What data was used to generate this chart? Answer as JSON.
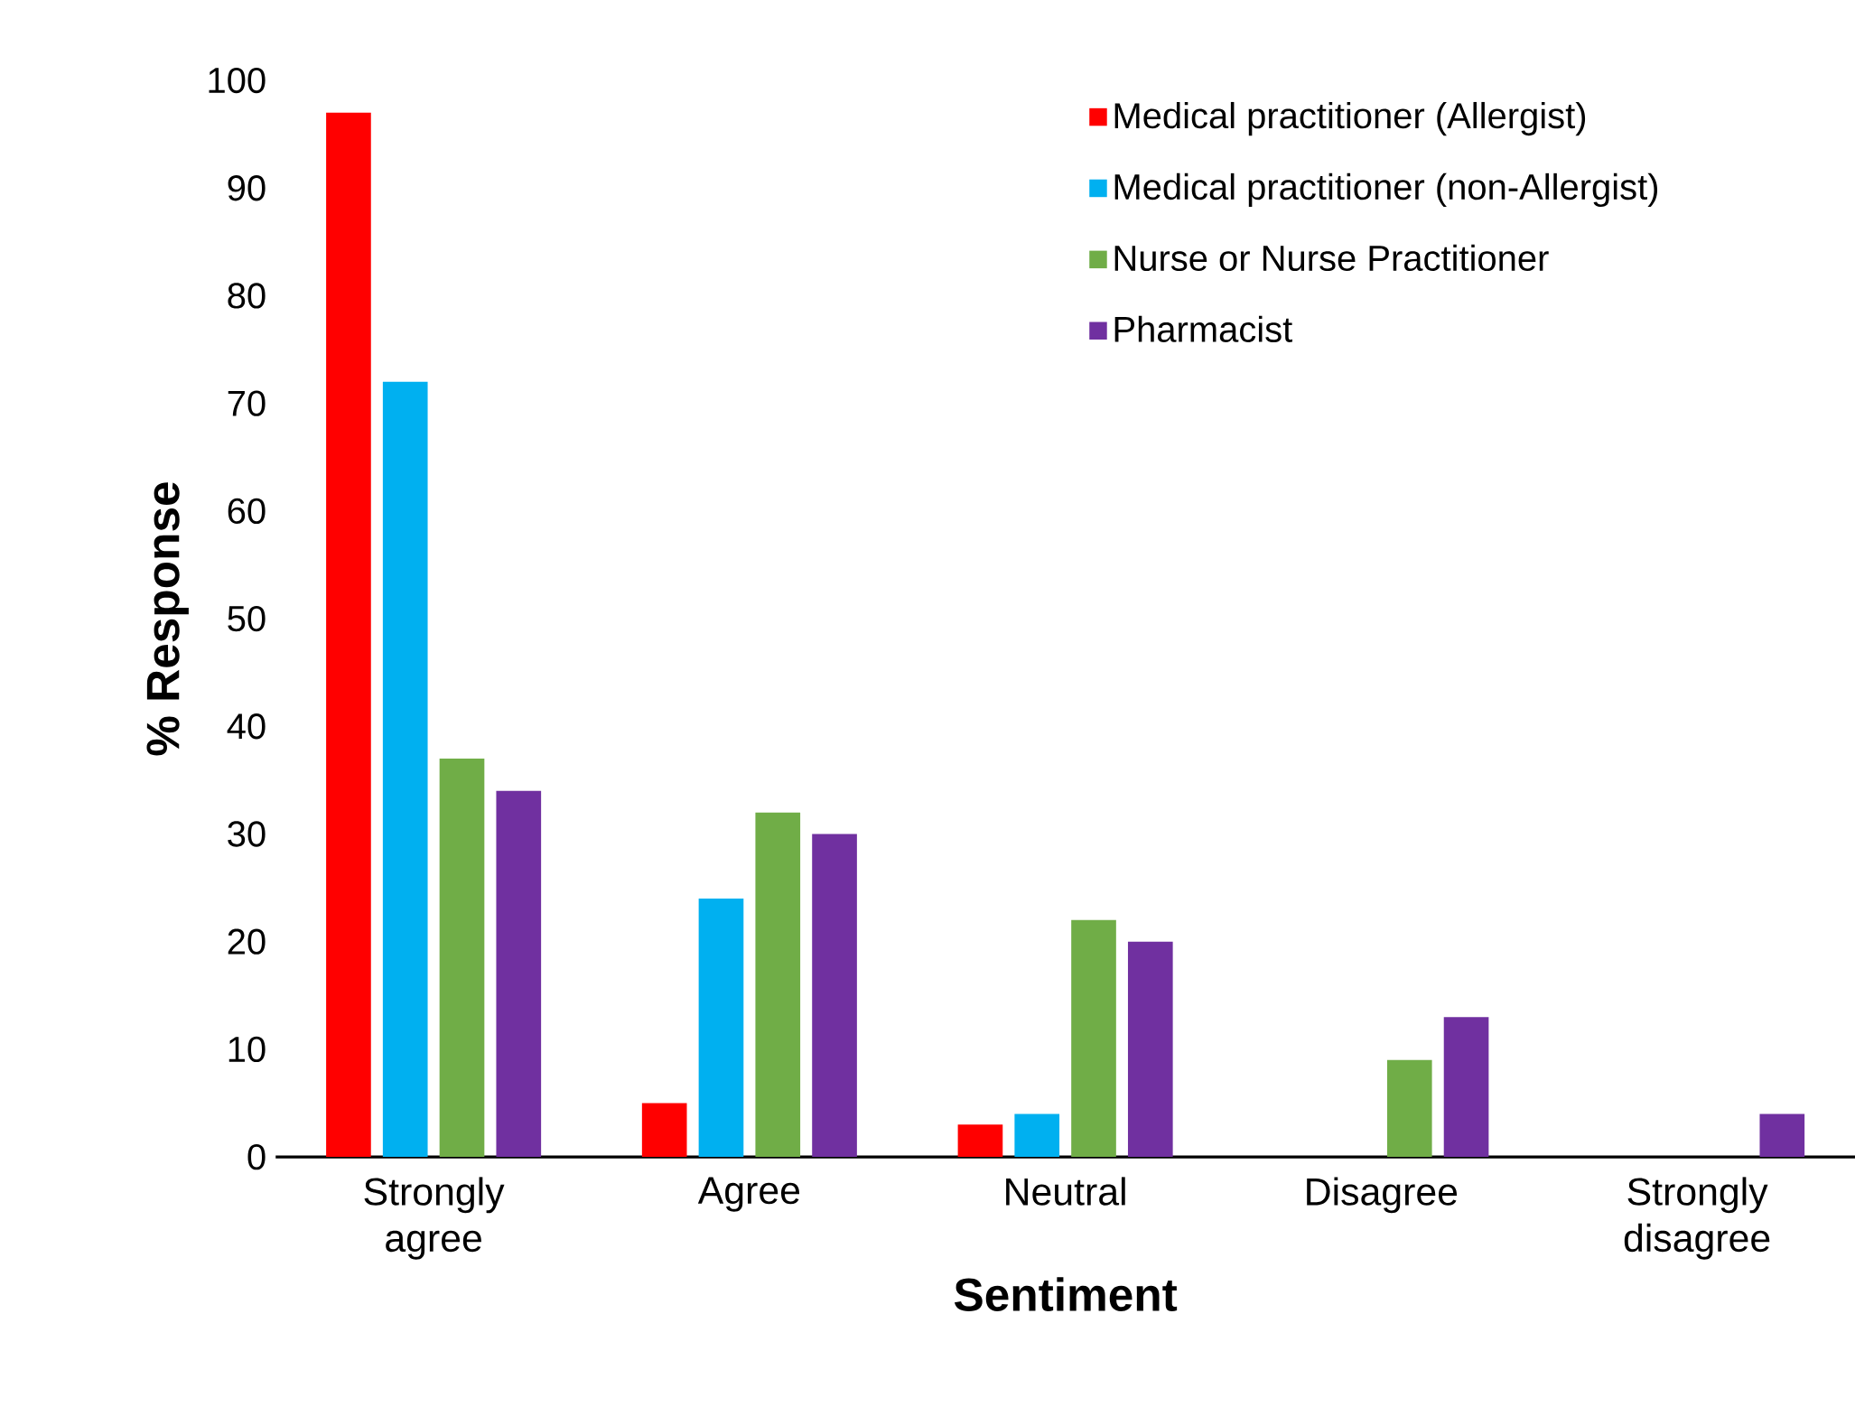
{
  "chart_data": {
    "type": "bar",
    "xlabel": "Sentiment",
    "ylabel": "% Response",
    "categories": [
      "Strongly agree",
      "Agree",
      "Neutral",
      "Disagree",
      "Strongly disagree"
    ],
    "series": [
      {
        "name": "Medical practitioner (Allergist)",
        "color": "#ff0000",
        "values": [
          97,
          5,
          3,
          0,
          0
        ]
      },
      {
        "name": "Medical practitioner (non-Allergist)",
        "color": "#00b0f0",
        "values": [
          72,
          24,
          4,
          0,
          0
        ]
      },
      {
        "name": "Nurse or Nurse Practitioner",
        "color": "#70ad47",
        "values": [
          37,
          32,
          22,
          9,
          0
        ]
      },
      {
        "name": "Pharmacist",
        "color": "#7030a0",
        "values": [
          34,
          30,
          20,
          13,
          4
        ]
      }
    ],
    "ylim": [
      0,
      100
    ],
    "yticks": [
      0,
      10,
      20,
      30,
      40,
      50,
      60,
      70,
      80,
      90,
      100
    ],
    "grid": false,
    "legend": "top right"
  }
}
